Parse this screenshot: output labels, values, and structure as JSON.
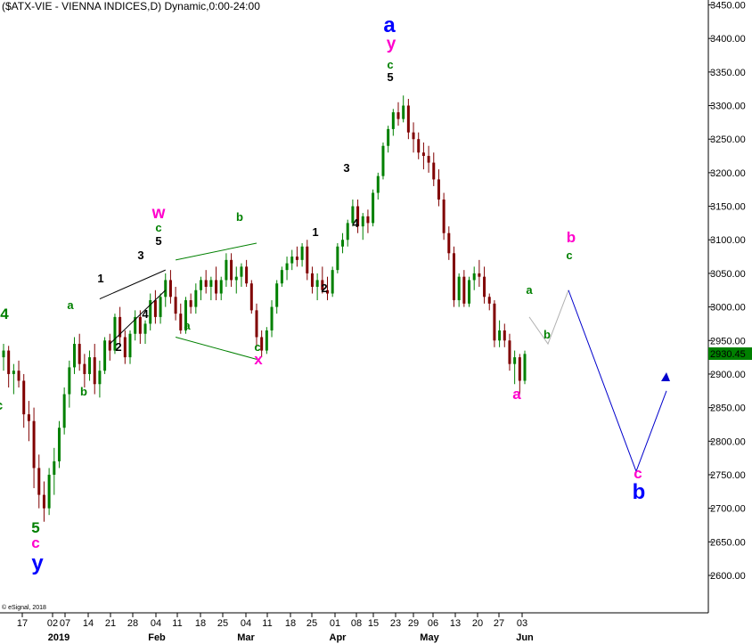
{
  "chart_data": {
    "type": "candlestick",
    "title": "($ATX-VIE - VIENNA INDICES,D) Dynamic,0:00-24:00",
    "ylim": [
      2550,
      3460
    ],
    "y_ticks": [
      2600,
      2650,
      2700,
      2750,
      2800,
      2850,
      2900,
      2950,
      3000,
      3050,
      3100,
      3150,
      3200,
      3250,
      3300,
      3350,
      3400,
      3450
    ],
    "y_tick_labels": [
      "2600.00",
      "2650.00",
      "2700.00",
      "2750.00",
      "2800.00",
      "2850.00",
      "2900.00",
      "2950.00",
      "3000.00",
      "3050.00",
      "3100.00",
      "3150.00",
      "3200.00",
      "3250.00",
      "3300.00",
      "3350.00",
      "3400.00",
      "3450.00"
    ],
    "last_price": 2930.45,
    "last_price_label": "2930.45",
    "x_tick_labels": [
      "17",
      "02",
      "07",
      "14",
      "21",
      "28",
      "04",
      "11",
      "18",
      "25",
      "04",
      "11",
      "18",
      "25",
      "01",
      "08",
      "15",
      "23",
      "29",
      "06",
      "13",
      "20",
      "27",
      "03"
    ],
    "month_labels": [
      "2019",
      "Feb",
      "Mar",
      "Apr",
      "May",
      "Jun"
    ],
    "ohlc": [
      [
        2925,
        2945,
        2905,
        2935
      ],
      [
        2935,
        2942,
        2880,
        2900
      ],
      [
        2900,
        2915,
        2870,
        2905
      ],
      [
        2905,
        2920,
        2880,
        2890
      ],
      [
        2890,
        2900,
        2820,
        2840
      ],
      [
        2840,
        2860,
        2800,
        2830
      ],
      [
        2830,
        2850,
        2730,
        2760
      ],
      [
        2760,
        2780,
        2700,
        2720
      ],
      [
        2720,
        2740,
        2680,
        2700
      ],
      [
        2700,
        2760,
        2690,
        2750
      ],
      [
        2750,
        2790,
        2720,
        2770
      ],
      [
        2770,
        2830,
        2760,
        2820
      ],
      [
        2820,
        2880,
        2810,
        2870
      ],
      [
        2870,
        2920,
        2850,
        2910
      ],
      [
        2910,
        2955,
        2900,
        2945
      ],
      [
        2945,
        2960,
        2905,
        2915
      ],
      [
        2915,
        2930,
        2880,
        2900
      ],
      [
        2900,
        2935,
        2890,
        2925
      ],
      [
        2925,
        2945,
        2870,
        2885
      ],
      [
        2885,
        2920,
        2865,
        2905
      ],
      [
        2905,
        2955,
        2900,
        2950
      ],
      [
        2950,
        2960,
        2920,
        2935
      ],
      [
        2935,
        2990,
        2930,
        2985
      ],
      [
        2985,
        3000,
        2940,
        2955
      ],
      [
        2955,
        2965,
        2915,
        2925
      ],
      [
        2925,
        2965,
        2915,
        2960
      ],
      [
        2960,
        2995,
        2950,
        2985
      ],
      [
        2985,
        2995,
        2945,
        2960
      ],
      [
        2960,
        2980,
        2945,
        2975
      ],
      [
        2975,
        3020,
        2965,
        3010
      ],
      [
        3010,
        3025,
        2975,
        2985
      ],
      [
        2985,
        3020,
        2975,
        3015
      ],
      [
        3015,
        3050,
        3000,
        3040
      ],
      [
        3040,
        3055,
        3005,
        3015
      ],
      [
        3015,
        3030,
        2980,
        2990
      ],
      [
        2990,
        3005,
        2960,
        2965
      ],
      [
        2965,
        3015,
        2960,
        3010
      ],
      [
        3010,
        3020,
        2990,
        3000
      ],
      [
        3000,
        3035,
        2990,
        3025
      ],
      [
        3025,
        3045,
        3010,
        3040
      ],
      [
        3040,
        3055,
        3020,
        3030
      ],
      [
        3030,
        3045,
        3010,
        3040
      ],
      [
        3040,
        3060,
        3010,
        3020
      ],
      [
        3020,
        3045,
        3010,
        3040
      ],
      [
        3040,
        3080,
        3030,
        3070
      ],
      [
        3070,
        3080,
        3030,
        3040
      ],
      [
        3040,
        3060,
        3020,
        3045
      ],
      [
        3045,
        3065,
        3030,
        3060
      ],
      [
        3060,
        3070,
        3030,
        3035
      ],
      [
        3035,
        3040,
        2990,
        2995
      ],
      [
        2995,
        3005,
        2940,
        2955
      ],
      [
        2955,
        2965,
        2925,
        2935
      ],
      [
        2935,
        2970,
        2930,
        2965
      ],
      [
        2965,
        3010,
        2955,
        3000
      ],
      [
        3000,
        3040,
        2990,
        3035
      ],
      [
        3035,
        3060,
        3030,
        3055
      ],
      [
        3055,
        3075,
        3040,
        3065
      ],
      [
        3065,
        3085,
        3055,
        3075
      ],
      [
        3075,
        3090,
        3060,
        3070
      ],
      [
        3070,
        3095,
        3060,
        3090
      ],
      [
        3090,
        3100,
        3040,
        3050
      ],
      [
        3050,
        3060,
        3020,
        3030
      ],
      [
        3030,
        3050,
        3010,
        3040
      ],
      [
        3040,
        3060,
        3020,
        3025
      ],
      [
        3025,
        3045,
        3010,
        3020
      ],
      [
        3020,
        3060,
        3015,
        3055
      ],
      [
        3055,
        3095,
        3050,
        3090
      ],
      [
        3090,
        3110,
        3080,
        3100
      ],
      [
        3100,
        3130,
        3090,
        3125
      ],
      [
        3125,
        3160,
        3120,
        3150
      ],
      [
        3150,
        3160,
        3110,
        3120
      ],
      [
        3120,
        3140,
        3100,
        3135
      ],
      [
        3135,
        3145,
        3110,
        3125
      ],
      [
        3125,
        3175,
        3120,
        3170
      ],
      [
        3170,
        3200,
        3160,
        3195
      ],
      [
        3195,
        3245,
        3190,
        3240
      ],
      [
        3240,
        3270,
        3230,
        3265
      ],
      [
        3265,
        3295,
        3255,
        3290
      ],
      [
        3290,
        3305,
        3270,
        3280
      ],
      [
        3280,
        3315,
        3275,
        3300
      ],
      [
        3300,
        3310,
        3250,
        3260
      ],
      [
        3260,
        3275,
        3230,
        3250
      ],
      [
        3250,
        3260,
        3220,
        3230
      ],
      [
        3230,
        3245,
        3205,
        3225
      ],
      [
        3225,
        3240,
        3200,
        3215
      ],
      [
        3215,
        3230,
        3180,
        3190
      ],
      [
        3190,
        3205,
        3150,
        3160
      ],
      [
        3160,
        3170,
        3100,
        3110
      ],
      [
        3110,
        3120,
        3070,
        3080
      ],
      [
        3080,
        3090,
        3000,
        3010
      ],
      [
        3010,
        3050,
        3000,
        3045
      ],
      [
        3045,
        3055,
        3000,
        3005
      ],
      [
        3005,
        3045,
        3000,
        3040
      ],
      [
        3040,
        3060,
        3025,
        3050
      ],
      [
        3050,
        3070,
        3030,
        3045
      ],
      [
        3045,
        3060,
        3005,
        3015
      ],
      [
        3015,
        3020,
        2995,
        3005
      ],
      [
        3005,
        3010,
        2940,
        2950
      ],
      [
        2950,
        2980,
        2940,
        2965
      ],
      [
        2965,
        2975,
        2940,
        2950
      ],
      [
        2950,
        2960,
        2905,
        2915
      ],
      [
        2915,
        2935,
        2885,
        2925
      ],
      [
        2925,
        2930,
        2870,
        2890
      ],
      [
        2890,
        2935,
        2885,
        2930
      ]
    ],
    "labels_note": "Elliott-wave annotations printed on chart",
    "annotations": [
      {
        "text": "4",
        "color": "#008000"
      },
      {
        "text": "c",
        "color": "#008000"
      },
      {
        "text": "5",
        "color": "#008000"
      },
      {
        "text": "c",
        "color": "#ff00cc"
      },
      {
        "text": "y",
        "color": "#0000ff"
      },
      {
        "text": "a",
        "color": "#008000"
      },
      {
        "text": "b",
        "color": "#008000"
      },
      {
        "text": "1",
        "color": "#000000"
      },
      {
        "text": "2",
        "color": "#000000"
      },
      {
        "text": "3",
        "color": "#000000"
      },
      {
        "text": "4",
        "color": "#000000"
      },
      {
        "text": "5",
        "color": "#000000"
      },
      {
        "text": "c",
        "color": "#008000"
      },
      {
        "text": "w",
        "color": "#ff00cc"
      },
      {
        "text": "b",
        "color": "#008000"
      },
      {
        "text": "a",
        "color": "#008000"
      },
      {
        "text": "c",
        "color": "#008000"
      },
      {
        "text": "x",
        "color": "#ff00cc"
      },
      {
        "text": "1",
        "color": "#000000"
      },
      {
        "text": "2",
        "color": "#000000"
      },
      {
        "text": "3",
        "color": "#000000"
      },
      {
        "text": "4",
        "color": "#000000"
      },
      {
        "text": "5",
        "color": "#000000"
      },
      {
        "text": "c",
        "color": "#008000"
      },
      {
        "text": "y",
        "color": "#ff00cc"
      },
      {
        "text": "a",
        "color": "#0000ff"
      },
      {
        "text": "a",
        "color": "#ff00cc"
      },
      {
        "text": "a",
        "color": "#008000"
      },
      {
        "text": "b",
        "color": "#008000"
      },
      {
        "text": "c",
        "color": "#008000"
      },
      {
        "text": "b",
        "color": "#ff00cc"
      },
      {
        "text": "c",
        "color": "#ff00cc"
      },
      {
        "text": "b",
        "color": "#0000ff"
      }
    ],
    "projection": {
      "gray_path_values": [
        2985,
        2945,
        3025
      ],
      "blue_path_values": [
        3025,
        2755,
        2875
      ]
    },
    "copyright": "© eSignal, 2018",
    "colors": {
      "up": "#008000",
      "down": "#800000",
      "price_box": "#008000",
      "axis": "#000000"
    }
  }
}
